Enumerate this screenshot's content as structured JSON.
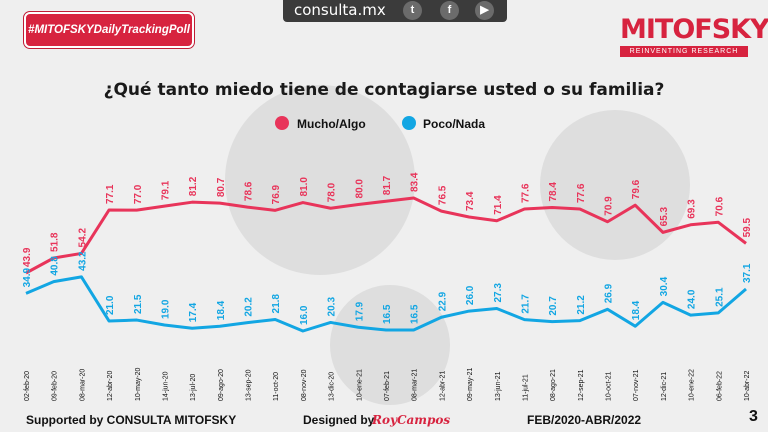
{
  "header": {
    "hashtag": "#MITOFSKYDailyTrackingPoll",
    "site": "consulta.mx",
    "social_icons": [
      "twitter-icon",
      "facebook-icon",
      "youtube-icon"
    ],
    "logo": "MITOFSKY",
    "logo_tagline": "REINVENTING RESEARCH"
  },
  "footer": {
    "supported": "Supported by  CONSULTA  MITOFSKY",
    "designed": "Designed by",
    "designer": "RoyCampos",
    "range": "FEB/2020-ABR/2022",
    "page": "3"
  },
  "colors": {
    "mucho": "#e8345a",
    "poco": "#12a6e3"
  },
  "chart_data": {
    "type": "line",
    "title": "¿Qué tanto miedo tiene de contagiarse usted o su familia?",
    "x": [
      "02-feb-20",
      "09-feb-20",
      "08-mar-20",
      "12-abr-20",
      "10-may-20",
      "14-jun-20",
      "13-jul-20",
      "09-ago-20",
      "13-sep-20",
      "11-oct-20",
      "08-nov-20",
      "13-dic-20",
      "10-ene-21",
      "07-feb-21",
      "08-mar-21",
      "12-abr-21",
      "09-may-21",
      "13-jun-21",
      "11-jul-21",
      "08-ago-21",
      "12-sep-21",
      "10-oct-21",
      "07-nov-21",
      "12-dic-21",
      "10-ene-22",
      "06-feb-22",
      "10-abr-22"
    ],
    "series": [
      {
        "name": "Mucho/Algo",
        "values": [
          43.9,
          51.8,
          54.2,
          77.1,
          77.0,
          79.1,
          81.2,
          80.7,
          78.6,
          76.9,
          81.0,
          78.0,
          80.0,
          81.7,
          83.4,
          76.5,
          73.4,
          71.4,
          77.6,
          78.4,
          77.6,
          70.9,
          79.6,
          65.3,
          69.3,
          70.6,
          59.5
        ]
      },
      {
        "name": "Poco/Nada",
        "values": [
          34.9,
          40.8,
          43.2,
          21.0,
          21.5,
          19.0,
          17.4,
          18.4,
          20.2,
          21.8,
          16.0,
          20.3,
          17.9,
          16.5,
          16.5,
          22.9,
          26.0,
          27.3,
          21.7,
          20.7,
          21.2,
          26.9,
          18.4,
          30.4,
          24.0,
          25.1,
          37.1
        ]
      }
    ]
  }
}
